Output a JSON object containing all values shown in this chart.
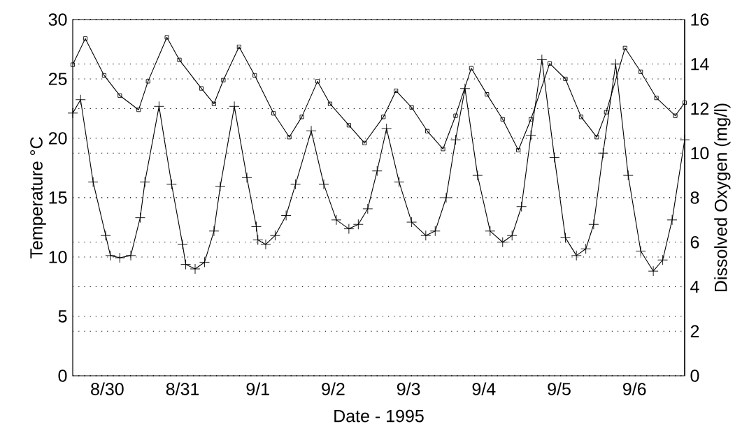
{
  "chart_data": {
    "type": "line",
    "xlabel": "Date - 1995",
    "ylabel": "Temperature °C",
    "y2label": "Dissolved Oxygen (mg/l)",
    "xlim": [
      "1995-08-29T13:00",
      "1995-09-06T16:00"
    ],
    "xticks": [
      {
        "value": "1995-08-30T00:00",
        "label": "8/30"
      },
      {
        "value": "1995-08-31T00:00",
        "label": "8/31"
      },
      {
        "value": "1995-09-01T00:00",
        "label": "9/1"
      },
      {
        "value": "1995-09-02T00:00",
        "label": "9/2"
      },
      {
        "value": "1995-09-03T00:00",
        "label": "9/3"
      },
      {
        "value": "1995-09-04T00:00",
        "label": "9/4"
      },
      {
        "value": "1995-09-05T00:00",
        "label": "9/5"
      },
      {
        "value": "1995-09-06T00:00",
        "label": "9/6"
      }
    ],
    "ylim": [
      0,
      30
    ],
    "yticks": [
      0,
      5,
      10,
      15,
      20,
      25,
      30
    ],
    "y2lim": [
      0,
      16
    ],
    "y2ticks": [
      0,
      2,
      4,
      6,
      8,
      10,
      12,
      14,
      16
    ],
    "grid": "y",
    "series": [
      {
        "color": "#000000",
        "marker": "square",
        "x": [
          "1995-08-29T13:00",
          "1995-08-29T17:00",
          "1995-08-29T23:00",
          "1995-08-30T04:00",
          "1995-08-30T10:00",
          "1995-08-30T13:00",
          "1995-08-30T19:00",
          "1995-08-30T23:00",
          "1995-08-31T06:00",
          "1995-08-31T10:00",
          "1995-08-31T13:00",
          "1995-08-31T18:00",
          "1995-08-31T23:00",
          "1995-09-01T05:00",
          "1995-09-01T10:00",
          "1995-09-01T14:00",
          "1995-09-01T19:00",
          "1995-09-01T23:00",
          "1995-09-02T05:00",
          "1995-09-02T10:00",
          "1995-09-02T16:00",
          "1995-09-02T20:00",
          "1995-09-03T01:00",
          "1995-09-03T06:00",
          "1995-09-03T11:00",
          "1995-09-03T15:00",
          "1995-09-03T20:00",
          "1995-09-04T01:00",
          "1995-09-04T06:00",
          "1995-09-04T11:00",
          "1995-09-04T15:00",
          "1995-09-04T21:00",
          "1995-09-05T02:00",
          "1995-09-05T07:00",
          "1995-09-05T12:00",
          "1995-09-05T15:00",
          "1995-09-05T21:00",
          "1995-09-06T02:00",
          "1995-09-06T07:00",
          "1995-09-06T13:00",
          "1995-09-06T16:00"
        ],
        "values": [
          26.2,
          28.4,
          25.3,
          23.6,
          22.4,
          24.8,
          28.5,
          26.6,
          24.2,
          22.9,
          24.9,
          27.7,
          25.3,
          22.1,
          20.1,
          21.8,
          24.8,
          22.9,
          21.1,
          19.6,
          21.8,
          24.0,
          22.6,
          20.6,
          19.1,
          21.9,
          25.9,
          23.7,
          21.6,
          19.0,
          21.6,
          26.3,
          25.0,
          21.8,
          20.1,
          22.2,
          27.6,
          25.6,
          23.4,
          21.9,
          23.0
        ]
      },
      {
        "color": "#000000",
        "marker": "cross",
        "axis": "y2",
        "x": [
          "1995-08-29T13:00",
          "1995-08-29T15:30",
          "1995-08-29T19:30",
          "1995-08-29T23:30",
          "1995-08-30T01:00",
          "1995-08-30T04:00",
          "1995-08-30T07:30",
          "1995-08-30T10:30",
          "1995-08-30T12:00",
          "1995-08-30T16:30",
          "1995-08-30T20:30",
          "1995-08-31T00:00",
          "1995-08-31T01:00",
          "1995-08-31T04:00",
          "1995-08-31T07:00",
          "1995-08-31T10:00",
          "1995-08-31T12:00",
          "1995-08-31T16:30",
          "1995-08-31T20:30",
          "1995-08-31T23:30",
          "1995-09-01T00:00",
          "1995-09-01T02:30",
          "1995-09-01T05:30",
          "1995-09-01T09:00",
          "1995-09-01T12:00",
          "1995-09-01T17:00",
          "1995-09-01T21:00",
          "1995-09-02T01:00",
          "1995-09-02T05:00",
          "1995-09-02T08:00",
          "1995-09-02T11:00",
          "1995-09-02T14:00",
          "1995-09-02T17:00",
          "1995-09-02T21:00",
          "1995-09-03T01:00",
          "1995-09-03T05:30",
          "1995-09-03T08:30",
          "1995-09-03T12:00",
          "1995-09-03T15:00",
          "1995-09-03T18:00",
          "1995-09-03T22:00",
          "1995-09-04T02:00",
          "1995-09-04T06:00",
          "1995-09-04T09:00",
          "1995-09-04T12:00",
          "1995-09-04T15:00",
          "1995-09-04T18:30",
          "1995-09-04T22:30",
          "1995-09-05T02:00",
          "1995-09-05T05:30",
          "1995-09-05T08:30",
          "1995-09-05T11:00",
          "1995-09-05T14:00",
          "1995-09-05T18:00",
          "1995-09-05T22:00",
          "1995-09-06T02:00",
          "1995-09-06T06:00",
          "1995-09-06T09:00",
          "1995-09-06T12:00",
          "1995-09-06T16:00"
        ],
        "values": [
          11.8,
          12.4,
          8.7,
          6.3,
          5.4,
          5.3,
          5.4,
          7.1,
          8.7,
          12.1,
          8.6,
          5.9,
          5.0,
          4.8,
          5.1,
          6.5,
          8.5,
          12.1,
          8.9,
          6.7,
          6.1,
          5.9,
          6.3,
          7.2,
          8.6,
          11.0,
          8.6,
          7.0,
          6.6,
          6.8,
          7.5,
          9.2,
          11.1,
          8.7,
          6.9,
          6.3,
          6.5,
          8.0,
          10.6,
          12.9,
          9.0,
          6.5,
          6.0,
          6.3,
          7.6,
          10.8,
          14.2,
          9.8,
          6.2,
          5.4,
          5.7,
          6.8,
          10.0,
          14.0,
          9.0,
          5.6,
          4.7,
          5.2,
          7.0,
          10.6
        ]
      }
    ]
  }
}
